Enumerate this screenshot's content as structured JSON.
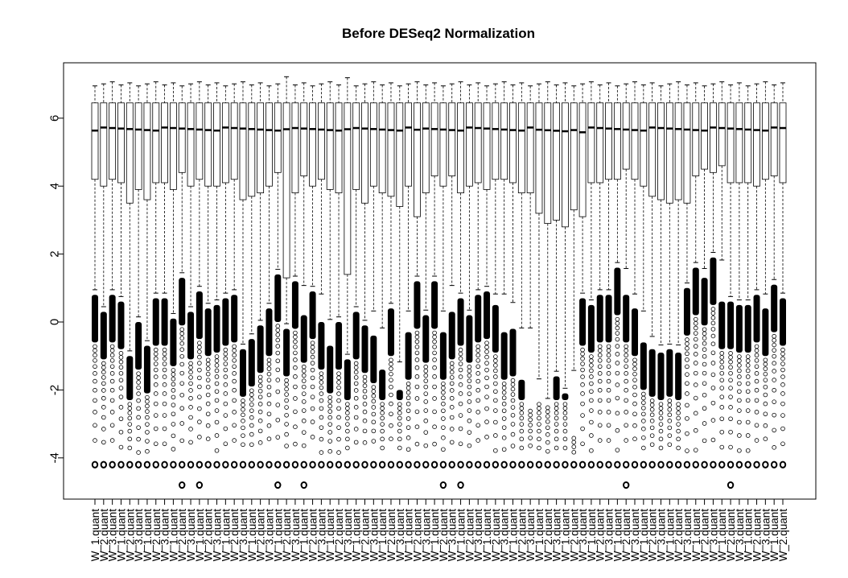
{
  "chart_data": {
    "type": "boxplot",
    "title": "Before DESeq2 Normalization",
    "xlabel": "",
    "ylabel": "",
    "ylim": [
      -5.0,
      7.2
    ],
    "y_ticks": [
      -4,
      -2,
      0,
      2,
      4,
      6
    ],
    "n_samples": 80,
    "x_label_base": "W_1.quant",
    "x_labels": [
      "W_1.quant",
      "W_2.quant",
      "W_3.quant",
      "W_1.quant",
      "W_2.quant",
      "W_3.quant",
      "W_1.quant",
      "W_2.quant",
      "W_3.quant",
      "W_1.quant",
      "W_2.quant",
      "W_3.quant",
      "W_1.quant",
      "W_2.quant",
      "W_3.quant",
      "W_1.quant",
      "W_2.quant",
      "W_3.quant",
      "W_1.quant",
      "W_2.quant",
      "W_3.quant",
      "W_1.quant",
      "W_2.quant",
      "W_3.quant",
      "W_1.quant",
      "W_2.quant",
      "W_3.quant",
      "W_1.quant",
      "W_2.quant",
      "W_3.quant",
      "W_1.quant",
      "W_2.quant",
      "W_3.quant",
      "W_1.quant",
      "W_2.quant",
      "W_3.quant",
      "W_1.quant",
      "W_2.quant",
      "W_3.quant",
      "W_1.quant",
      "W_2.quant",
      "W_3.quant",
      "W_1.quant",
      "W_2.quant",
      "W_3.quant",
      "W_1.quant",
      "W_2.quant",
      "W_3.quant",
      "W_1.quant",
      "W_2.quant",
      "W_3.quant",
      "W_1.quant",
      "W_2.quant",
      "W_3.quant",
      "W_1.quant",
      "W_2.quant",
      "W_3.quant",
      "W_1.quant",
      "W_2.quant",
      "W_3.quant",
      "W_1.quant",
      "W_2.quant",
      "W_3.quant",
      "W_1.quant",
      "W_2.quant",
      "W_3.quant",
      "W_1.quant",
      "W_2.quant",
      "W_3.quant",
      "W_1.quant",
      "W_2.quant",
      "W_3.quant",
      "W_1.quant",
      "W_2.quant",
      "W_3.quant",
      "W_1.quant",
      "W_2.quant",
      "W_3.quant",
      "W_1.quant",
      "W_2.quant"
    ],
    "median_approx": 5.68,
    "q3_approx": 6.45,
    "upper_whisker_approx": 6.95,
    "outlier_floor_approx": -4.2,
    "q1": [
      4.2,
      4.0,
      4.2,
      4.1,
      3.5,
      3.9,
      3.6,
      4.1,
      4.1,
      3.9,
      4.4,
      4.0,
      4.2,
      4.0,
      4.0,
      4.1,
      4.2,
      3.6,
      3.7,
      3.8,
      4.0,
      4.4,
      1.3,
      3.8,
      4.3,
      4.0,
      4.2,
      3.9,
      3.8,
      1.4,
      3.9,
      3.5,
      4.0,
      3.8,
      3.7,
      3.4,
      4.0,
      3.1,
      3.8,
      4.3,
      4.0,
      4.3,
      3.8,
      4.0,
      4.1,
      3.9,
      4.2,
      4.2,
      4.1,
      3.8,
      3.8,
      3.2,
      2.9,
      3.0,
      2.8,
      3.3,
      3.1,
      4.1,
      4.1,
      4.2,
      4.2,
      4.5,
      4.2,
      4.0,
      3.7,
      3.6,
      3.5,
      3.6,
      3.5,
      4.3,
      4.5,
      4.4,
      4.6,
      4.1,
      4.1,
      4.1,
      4.0,
      4.2,
      4.3,
      4.1
    ],
    "filled_top": [
      0.8,
      0.3,
      0.8,
      0.6,
      -1.0,
      0.0,
      -0.7,
      0.7,
      0.7,
      0.1,
      1.3,
      0.3,
      0.9,
      0.4,
      0.5,
      0.7,
      0.8,
      -0.8,
      -0.5,
      -0.1,
      0.4,
      1.4,
      -0.2,
      1.2,
      0.2,
      0.9,
      0.0,
      -0.7,
      0.0,
      -1.1,
      0.3,
      -0.1,
      -0.4,
      -1.4,
      0.4,
      -2.0,
      -0.3,
      1.2,
      0.2,
      1.2,
      -0.3,
      0.3,
      0.7,
      0.2,
      0.8,
      0.9,
      0.5,
      -0.3,
      -0.2,
      -1.7,
      -2.5,
      -2.3,
      -2.4,
      -1.6,
      -2.1,
      -3.3,
      0.7,
      0.5,
      0.8,
      0.8,
      1.6,
      0.8,
      0.4,
      -0.6,
      -0.8,
      -0.9,
      -0.8,
      -0.9,
      1.0,
      1.6,
      1.3,
      1.9,
      0.6,
      0.6,
      0.5,
      0.5,
      0.8,
      0.4,
      1.1,
      0.7
    ],
    "extreme_outlier_value": -4.8,
    "extreme_outlier_samples": [
      10,
      12,
      21,
      24,
      40,
      42,
      61,
      73
    ]
  }
}
